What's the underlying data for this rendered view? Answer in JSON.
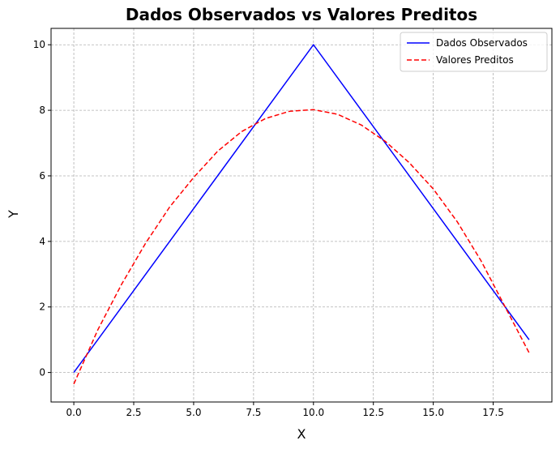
{
  "chart_data": {
    "type": "line",
    "title": "Dados Observados vs Valores Preditos",
    "xlabel": "X",
    "ylabel": "Y",
    "xlim": [
      -0.95,
      19.95
    ],
    "ylim": [
      -0.9,
      10.5
    ],
    "xticks": [
      0.0,
      2.5,
      5.0,
      7.5,
      10.0,
      12.5,
      15.0,
      17.5
    ],
    "xtick_labels": [
      "0.0",
      "2.5",
      "5.0",
      "7.5",
      "10.0",
      "12.5",
      "15.0",
      "17.5"
    ],
    "yticks": [
      0,
      2,
      4,
      6,
      8,
      10
    ],
    "ytick_labels": [
      "0",
      "2",
      "4",
      "6",
      "8",
      "10"
    ],
    "grid": true,
    "legend_position": "top-right",
    "series": [
      {
        "name": "Dados Observados",
        "color": "#0000ff",
        "style": "solid",
        "x": [
          0,
          10,
          19
        ],
        "y": [
          0,
          10,
          1
        ]
      },
      {
        "name": "Valores Preditos",
        "color": "#ff0000",
        "style": "dashed",
        "x": [
          0,
          1,
          2,
          3,
          4,
          5,
          6,
          7,
          8,
          9,
          10,
          11,
          12,
          13,
          14,
          15,
          16,
          17,
          18,
          19
        ],
        "y": [
          -0.35,
          1.3,
          2.7,
          3.95,
          5.05,
          5.95,
          6.75,
          7.35,
          7.75,
          7.97,
          8.02,
          7.88,
          7.55,
          7.05,
          6.4,
          5.6,
          4.6,
          3.4,
          2.0,
          0.6
        ]
      }
    ]
  }
}
